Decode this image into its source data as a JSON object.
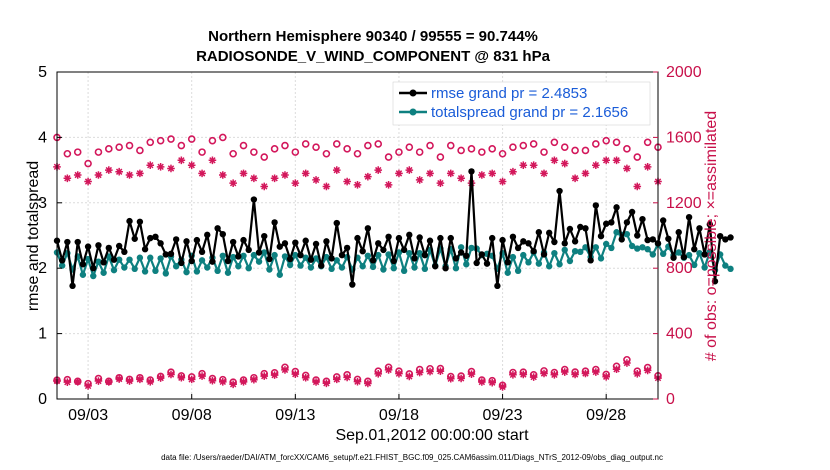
{
  "chart_data": {
    "type": "line",
    "title_line1": "Northern Hemisphere 90340 / 99555 = 90.744%",
    "title_line2": "RADIOSONDE_V_WIND_COMPONENT @ 831 hPa",
    "xlabel": "Sep.01,2012 00:00:00 start",
    "ylabel_left": "rmse and totalspread",
    "ylabel_right": "# of obs: o=possible; ×=assimilated",
    "footer": "data file: /Users/raeder/DAI/ATM_forcXX/CAM6_setup/f.e21.FHIST_BGC.f09_025.CAM6assim.011/Diags_NTrS_2012-09/obs_diag_output.nc",
    "xlim": [
      1.5,
      30.5
    ],
    "ylim_left": [
      0,
      5
    ],
    "ylim_right": [
      0,
      2000
    ],
    "x_ticks": [
      3,
      8,
      13,
      18,
      23,
      28
    ],
    "x_tick_labels": [
      "09/03",
      "09/08",
      "09/13",
      "09/18",
      "09/23",
      "09/28"
    ],
    "y_left_ticks": [
      "0",
      "1",
      "2",
      "3",
      "4",
      "5"
    ],
    "y_right_ticks": [
      "0",
      "400",
      "800",
      "1200",
      "1600",
      "2000"
    ],
    "colors": {
      "rmse": "#000000",
      "spread": "#0e8080",
      "obs": "#d3175b",
      "legend_text": "#1a5cd8",
      "right_axis": "#c8104a"
    },
    "series": [
      {
        "name": "rmse grand pr = 2.4853",
        "axis": "left",
        "x_start": 1.5,
        "x_step": 0.25,
        "values": [
          2.42,
          2.12,
          2.4,
          1.73,
          2.4,
          2.06,
          2.33,
          2.0,
          2.35,
          2.09,
          2.31,
          2.13,
          2.34,
          2.25,
          2.72,
          2.45,
          2.71,
          2.29,
          2.46,
          2.48,
          2.38,
          2.21,
          2.22,
          2.44,
          2.08,
          2.41,
          2.11,
          2.43,
          2.25,
          2.51,
          2.1,
          2.61,
          2.52,
          2.11,
          2.4,
          2.18,
          2.43,
          2.28,
          3.05,
          2.24,
          2.49,
          2.14,
          2.7,
          2.33,
          2.38,
          2.14,
          2.39,
          2.2,
          2.42,
          2.13,
          2.37,
          2.04,
          2.41,
          2.15,
          2.69,
          2.2,
          2.31,
          1.75,
          2.46,
          2.26,
          2.61,
          2.12,
          2.38,
          2.28,
          2.48,
          2.11,
          2.46,
          2.28,
          2.51,
          2.15,
          2.47,
          2.2,
          2.42,
          2.03,
          2.46,
          2.0,
          2.46,
          2.15,
          2.24,
          2.19,
          3.48,
          2.08,
          2.21,
          2.07,
          2.46,
          1.73,
          2.43,
          2.09,
          2.48,
          2.31,
          2.41,
          2.38,
          2.26,
          2.55,
          2.21,
          2.54,
          2.4,
          3.18,
          2.38,
          2.6,
          2.41,
          2.63,
          2.61,
          2.12,
          2.96,
          2.49,
          2.68,
          2.7,
          2.93,
          2.44,
          2.7,
          2.86,
          2.5,
          2.75,
          2.43,
          2.44,
          2.38,
          2.73,
          2.45,
          2.16,
          2.55,
          2.17,
          2.78,
          2.29,
          2.61,
          2.21,
          2.67,
          1.8,
          2.49,
          2.44,
          2.47
        ]
      },
      {
        "name": "totalspread grand pr = 2.1656",
        "axis": "left",
        "x_start": 1.5,
        "x_step": 0.25,
        "values": [
          2.24,
          2.04,
          2.23,
          1.98,
          2.18,
          1.9,
          2.14,
          1.88,
          2.1,
          1.93,
          2.18,
          1.97,
          2.13,
          2.01,
          2.13,
          1.99,
          2.16,
          1.95,
          2.16,
          1.96,
          2.15,
          1.92,
          2.18,
          2.03,
          2.13,
          1.94,
          2.19,
          1.95,
          2.12,
          2.01,
          2.16,
          1.96,
          2.19,
          1.93,
          2.17,
          2.03,
          2.19,
          2.0,
          2.2,
          2.1,
          2.24,
          1.98,
          2.2,
          1.9,
          2.18,
          2.05,
          2.2,
          2.04,
          2.16,
          2.01,
          2.15,
          2.03,
          2.17,
          1.99,
          2.12,
          2.01,
          2.17,
          1.98,
          2.16,
          2.03,
          2.19,
          2.02,
          2.2,
          1.98,
          2.21,
          2.0,
          2.24,
          1.96,
          2.23,
          2.01,
          2.23,
          1.99,
          2.28,
          2.04,
          2.3,
          2.03,
          2.29,
          2.0,
          2.32,
          2.06,
          2.31,
          2.3,
          2.2,
          2.22,
          2.19,
          1.99,
          2.23,
          1.93,
          2.17,
          1.96,
          2.2,
          2.09,
          2.24,
          2.07,
          2.24,
          2.03,
          2.23,
          2.06,
          2.28,
          2.11,
          2.26,
          2.25,
          2.32,
          2.17,
          2.32,
          2.15,
          2.37,
          2.31,
          2.55,
          2.51,
          2.52,
          2.34,
          2.3,
          2.32,
          2.29,
          2.21,
          2.37,
          2.22,
          2.33,
          2.2,
          2.24,
          2.16,
          2.2,
          2.05,
          2.23,
          2.01,
          2.25,
          1.97,
          2.21,
          2.04,
          1.99
        ]
      },
      {
        "name": "possible",
        "axis": "right",
        "marker": "o",
        "x_start": 1.5,
        "x_step": 0.5,
        "values": [
          1600,
          1500,
          1510,
          1440,
          1510,
          1530,
          1540,
          1550,
          1520,
          1570,
          1580,
          1590,
          1550,
          1590,
          1510,
          1580,
          1600,
          1500,
          1550,
          1510,
          1480,
          1530,
          1550,
          1510,
          1560,
          1540,
          1500,
          1560,
          1530,
          1500,
          1550,
          1560,
          1480,
          1510,
          1540,
          1510,
          1550,
          1480,
          1550,
          1520,
          1530,
          1510,
          1530,
          1500,
          1540,
          1550,
          1560,
          1510,
          1570,
          1540,
          1520,
          1520,
          1560,
          1580,
          1570,
          1530,
          1480,
          1570,
          1540
        ]
      },
      {
        "name": "assimilated",
        "axis": "right",
        "marker": "*",
        "x_start": 1.5,
        "x_step": 0.5,
        "values": [
          1420,
          1350,
          1370,
          1330,
          1370,
          1400,
          1390,
          1370,
          1380,
          1430,
          1420,
          1410,
          1460,
          1430,
          1380,
          1460,
          1370,
          1320,
          1380,
          1350,
          1300,
          1350,
          1370,
          1320,
          1380,
          1340,
          1300,
          1400,
          1330,
          1310,
          1360,
          1400,
          1310,
          1380,
          1400,
          1340,
          1380,
          1320,
          1380,
          1350,
          1320,
          1370,
          1380,
          1330,
          1390,
          1430,
          1430,
          1380,
          1460,
          1440,
          1350,
          1380,
          1430,
          1460,
          1460,
          1410,
          1300,
          1420,
          1330
        ]
      },
      {
        "name": "possible-low",
        "axis": "right",
        "marker": "o",
        "x_start": 1.5,
        "x_step": 0.5,
        "values": [
          115,
          118,
          108,
          94,
          125,
          108,
          130,
          120,
          130,
          116,
          138,
          164,
          141,
          135,
          155,
          125,
          118,
          103,
          116,
          130,
          155,
          160,
          194,
          168,
          144,
          116,
          108,
          135,
          148,
          120,
          108,
          170,
          194,
          170,
          153,
          180,
          185,
          186,
          137,
          140,
          168,
          116,
          112,
          84,
          162,
          164,
          148,
          172,
          162,
          180,
          165,
          170,
          180,
          150,
          200,
          240,
          170,
          192,
          142
        ]
      },
      {
        "name": "assimilated-low",
        "axis": "right",
        "marker": "*",
        "x_start": 1.5,
        "x_step": 0.5,
        "values": [
          110,
          103,
          105,
          80,
          110,
          104,
          122,
          110,
          120,
          105,
          128,
          150,
          130,
          120,
          140,
          112,
          105,
          90,
          105,
          118,
          140,
          146,
          178,
          152,
          130,
          104,
          96,
          120,
          132,
          106,
          95,
          154,
          178,
          155,
          138,
          162,
          168,
          170,
          124,
          126,
          152,
          104,
          100,
          74,
          148,
          150,
          134,
          156,
          148,
          165,
          150,
          156,
          165,
          136,
          182,
          220,
          154,
          175,
          128
        ]
      }
    ]
  }
}
